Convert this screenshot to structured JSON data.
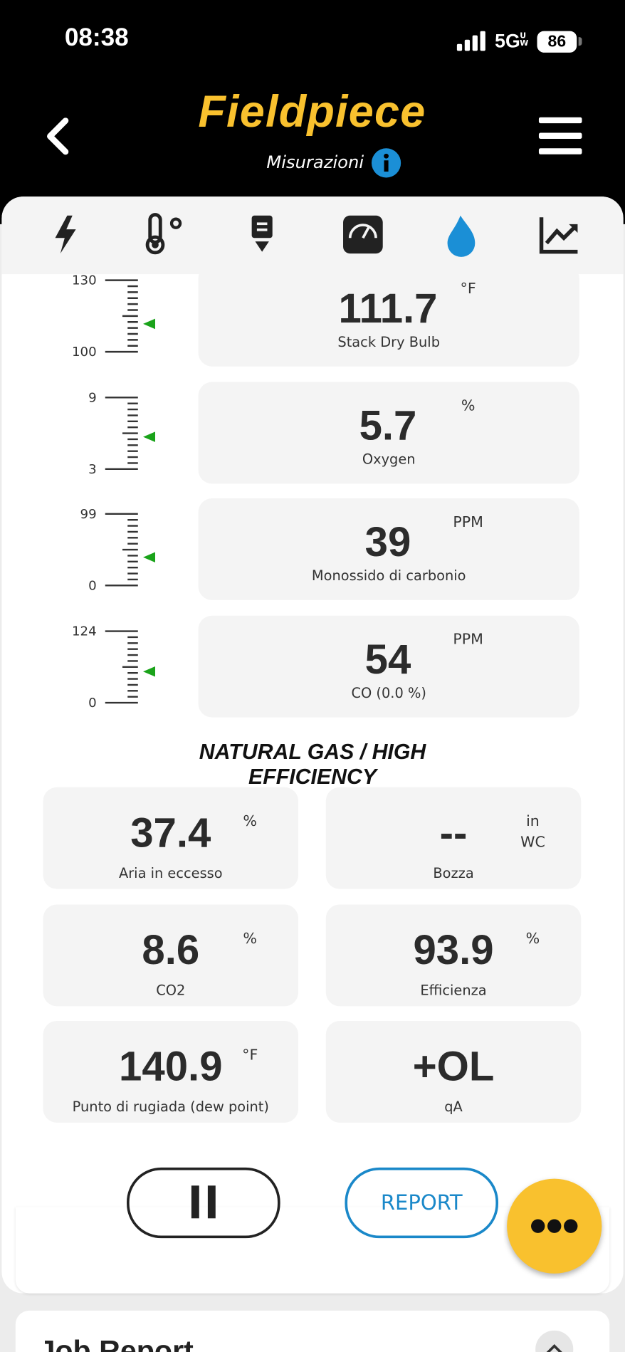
{
  "status_bar": {
    "time": "08:38",
    "network": "5G",
    "network_suffix": "UW",
    "battery": 86
  },
  "header": {
    "title": "Fieldpiece",
    "subtitle": "Misurazioni"
  },
  "gauges": [
    {
      "max": 130,
      "min": 100,
      "value": 111.7,
      "unit": "°F",
      "label": "Stack Dry Bulb"
    },
    {
      "max": 9,
      "min": 3,
      "value": 5.7,
      "unit": "%",
      "label": "Oxygen"
    },
    {
      "max": 99,
      "min": 0,
      "value": 39,
      "unit": "PPM",
      "label": "Monossido di carbonio"
    },
    {
      "max": 124,
      "min": 0,
      "value": 54,
      "unit": "PPM",
      "label": "CO (0.0 %)"
    }
  ],
  "section_title": "NATURAL GAS / HIGH EFFICIENCY",
  "cards": [
    {
      "value": 37.4,
      "unit": "%",
      "label": "Aria in eccesso"
    },
    {
      "value": "--",
      "unit": "in WC",
      "label": "Bozza"
    },
    {
      "value": 8.6,
      "unit": "%",
      "label": "CO2"
    },
    {
      "value": 93.9,
      "unit": "%",
      "label": "Efficienza"
    },
    {
      "value": 140.9,
      "unit": "°F",
      "label": "Punto di rugiada (dew point)"
    },
    {
      "value": "+OL",
      "label": "qA"
    }
  ],
  "buttons": {
    "report": "REPORT"
  },
  "job_report": {
    "title": "Job Report"
  }
}
